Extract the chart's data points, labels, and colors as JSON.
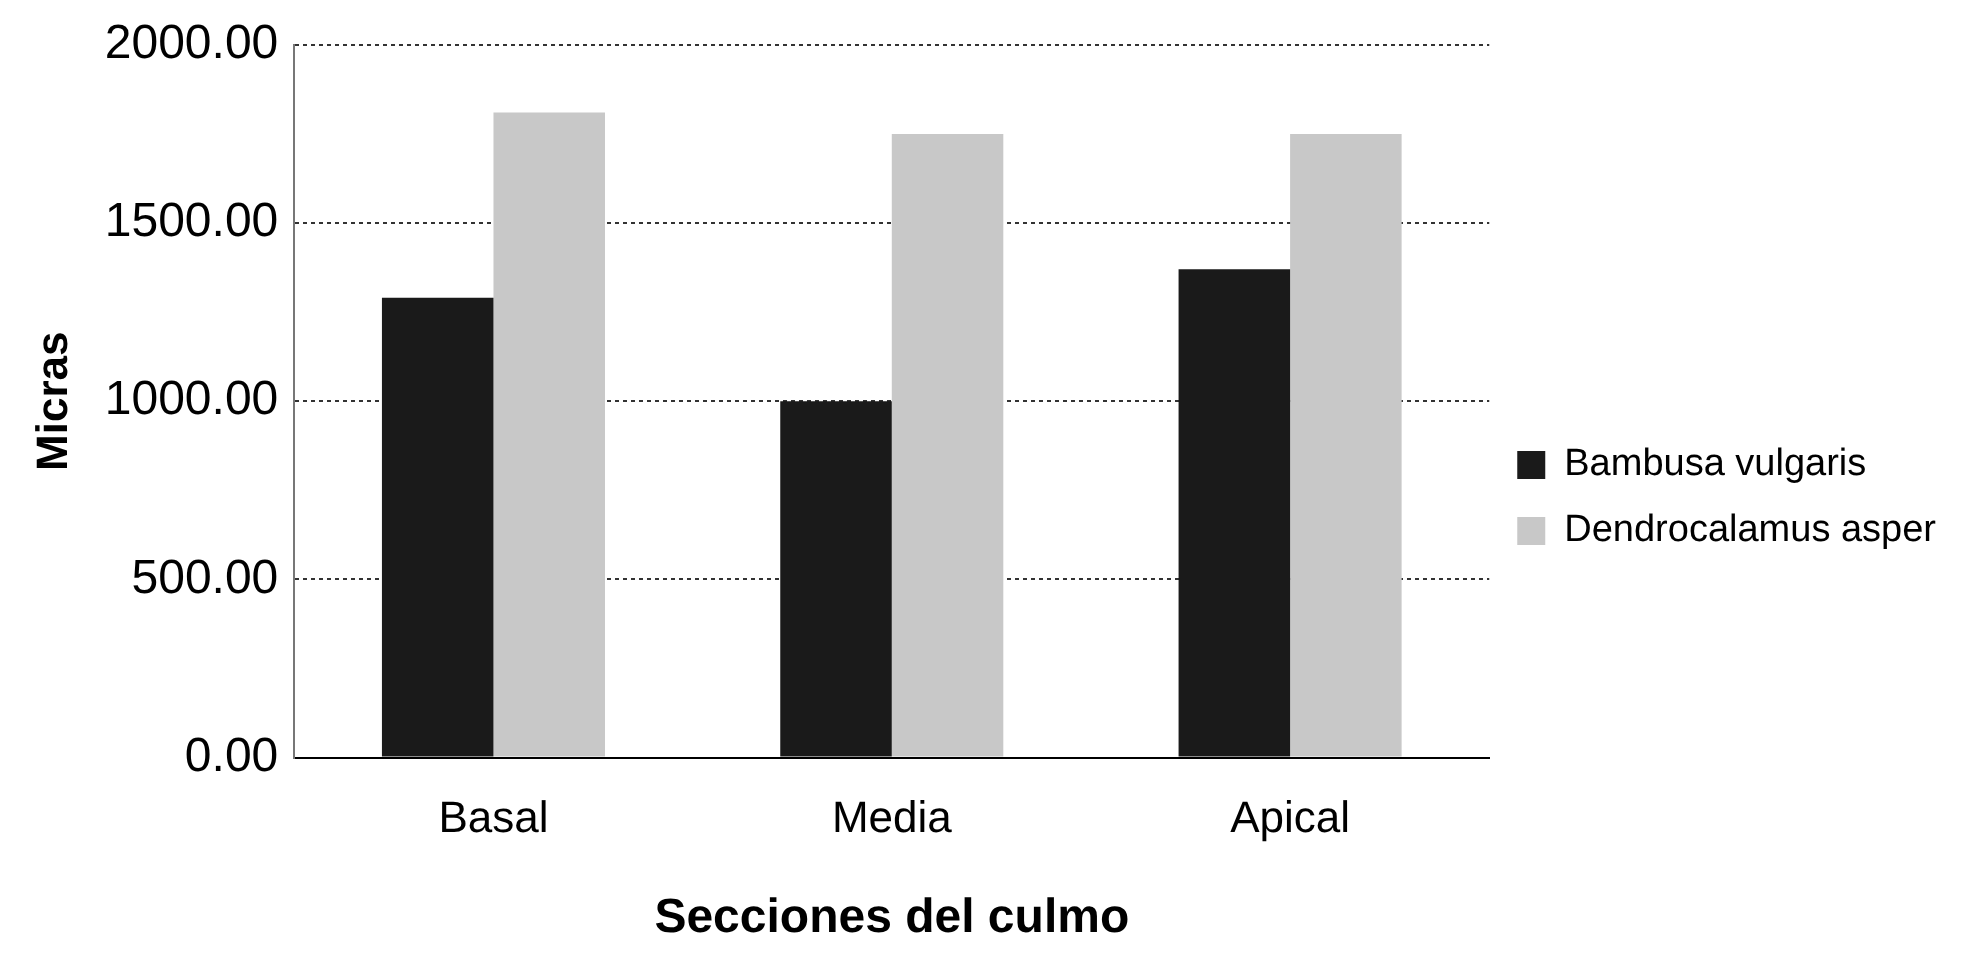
{
  "chart_data": {
    "type": "bar",
    "xlabel": "Secciones del culmo",
    "ylabel": "Micras",
    "categories": [
      "Basal",
      "Media",
      "Apical"
    ],
    "series": [
      {
        "name": "Bambusa vulgaris",
        "color": "#1a1a1a",
        "values": [
          1290,
          1000,
          1370
        ]
      },
      {
        "name": "Dendrocalamus asper",
        "color": "#c8c8c8",
        "values": [
          1810,
          1750,
          1750
        ]
      }
    ],
    "ylim": [
      0,
      2000
    ],
    "yticks": [
      {
        "value": 0,
        "label": "0.00"
      },
      {
        "value": 500,
        "label": "500.00"
      },
      {
        "value": 1000,
        "label": "1000.00"
      },
      {
        "value": 1500,
        "label": "1500.00"
      },
      {
        "value": 2000,
        "label": "2000.00"
      }
    ],
    "grid": "y",
    "legend": "right"
  }
}
